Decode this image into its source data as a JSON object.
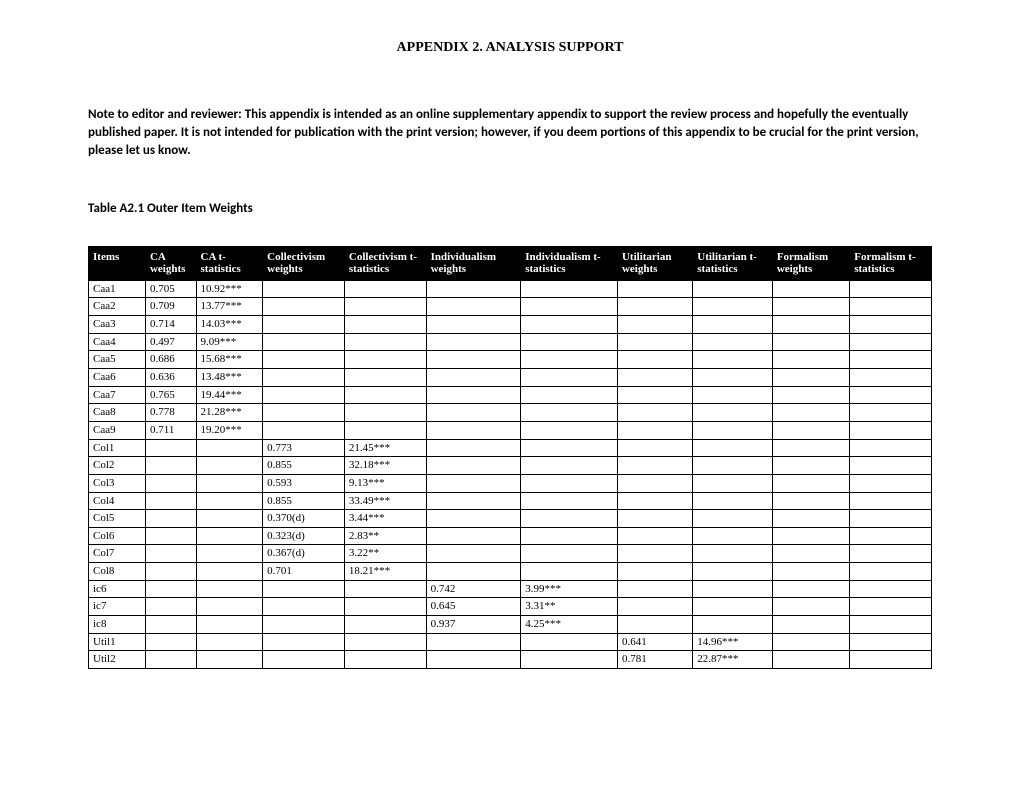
{
  "title": "APPENDIX 2. ANALYSIS SUPPORT",
  "note": "Note to editor and reviewer: This appendix is intended as an online supplementary appendix to support the review process and hopefully the eventually published paper. It is not intended for publication with the print version; however, if you deem portions of this appendix to be crucial for the print version, please let us know.",
  "caption": "Table A2.1 Outer Item Weights",
  "columns": [
    "Items",
    "CA weights",
    "CA t-statistics",
    "Collectivism weights",
    "Collectivism t-statistics",
    "Individualism weights",
    "Individualism t-statistics",
    "Utilitarian weights",
    "Utilitarian t-statistics",
    "Formalism weights",
    "Formalism t-statistics"
  ],
  "rows": [
    [
      "Caa1",
      "0.705",
      "10.92***",
      "",
      "",
      "",
      "",
      "",
      "",
      "",
      ""
    ],
    [
      "Caa2",
      "0.709",
      "13.77***",
      "",
      "",
      "",
      "",
      "",
      "",
      "",
      ""
    ],
    [
      "Caa3",
      "0.714",
      "14.03***",
      "",
      "",
      "",
      "",
      "",
      "",
      "",
      ""
    ],
    [
      "Caa4",
      "0.497",
      "9.09***",
      "",
      "",
      "",
      "",
      "",
      "",
      "",
      ""
    ],
    [
      "Caa5",
      "0.686",
      "15.68***",
      "",
      "",
      "",
      "",
      "",
      "",
      "",
      ""
    ],
    [
      "Caa6",
      "0.636",
      "13.48***",
      "",
      "",
      "",
      "",
      "",
      "",
      "",
      ""
    ],
    [
      "Caa7",
      "0.765",
      "19.44***",
      "",
      "",
      "",
      "",
      "",
      "",
      "",
      ""
    ],
    [
      "Caa8",
      "0.778",
      "21.28***",
      "",
      "",
      "",
      "",
      "",
      "",
      "",
      ""
    ],
    [
      "Caa9",
      "0.711",
      "19.20***",
      "",
      "",
      "",
      "",
      "",
      "",
      "",
      ""
    ],
    [
      "Col1",
      "",
      "",
      "0.773",
      "21.45***",
      "",
      "",
      "",
      "",
      "",
      ""
    ],
    [
      "Col2",
      "",
      "",
      "0.855",
      "32.18***",
      "",
      "",
      "",
      "",
      "",
      ""
    ],
    [
      "Col3",
      "",
      "",
      "0.593",
      "9.13***",
      "",
      "",
      "",
      "",
      "",
      ""
    ],
    [
      "Col4",
      "",
      "",
      "0.855",
      "33.49***",
      "",
      "",
      "",
      "",
      "",
      ""
    ],
    [
      "Col5",
      "",
      "",
      "0.370(d)",
      "3.44***",
      "",
      "",
      "",
      "",
      "",
      ""
    ],
    [
      "Col6",
      "",
      "",
      "0.323(d)",
      "2.83**",
      "",
      "",
      "",
      "",
      "",
      ""
    ],
    [
      "Col7",
      "",
      "",
      "0.367(d)",
      "3.22**",
      "",
      "",
      "",
      "",
      "",
      ""
    ],
    [
      "Col8",
      "",
      "",
      "0.701",
      "18.21***",
      "",
      "",
      "",
      "",
      "",
      ""
    ],
    [
      "ic6",
      "",
      "",
      "",
      "",
      "0.742",
      "3.99***",
      "",
      "",
      "",
      ""
    ],
    [
      "ic7",
      "",
      "",
      "",
      "",
      "0.645",
      "3.31**",
      "",
      "",
      "",
      ""
    ],
    [
      "ic8",
      "",
      "",
      "",
      "",
      "0.937",
      "4.25***",
      "",
      "",
      "",
      ""
    ],
    [
      "Util1",
      "",
      "",
      "",
      "",
      "",
      "",
      "0.641",
      "14.96***",
      "",
      ""
    ],
    [
      "Util2",
      "",
      "",
      "",
      "",
      "",
      "",
      "0.781",
      "22.87***",
      "",
      ""
    ]
  ],
  "style": {
    "body_font_serif": "Times New Roman",
    "body_font_sans": "Calibri",
    "header_bg": "#000000",
    "header_fg": "#ffffff",
    "cell_border": "#000000",
    "page_bg": "#ffffff",
    "title_fontsize_pt": 14,
    "note_fontsize_pt": 13,
    "cell_fontsize_pt": 11
  }
}
